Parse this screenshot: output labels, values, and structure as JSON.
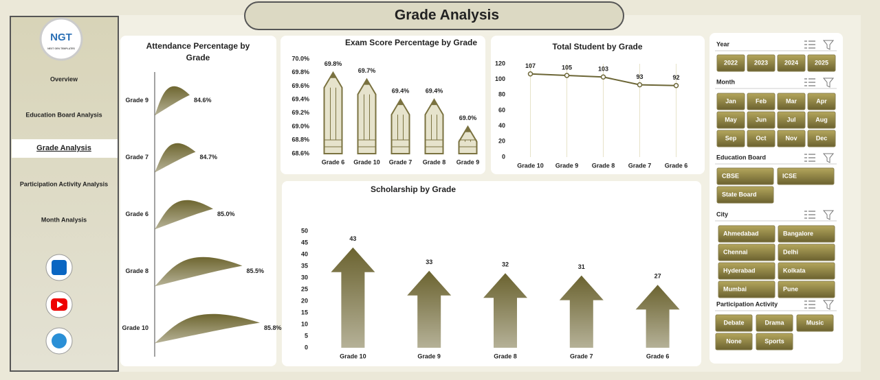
{
  "header": {
    "title": "Grade Analysis"
  },
  "logo": {
    "text": "NGT",
    "subtitle": "NEXT GEN TEMPLATES"
  },
  "nav": {
    "items": [
      "Overview",
      "Education Board Analysis",
      "Grade Analysis",
      "Participation Activity Analysis",
      "Month Analysis"
    ],
    "active": 2
  },
  "charts": [
    {
      "type": "flag",
      "title": "Attendance Percentage by Grade",
      "categories": [
        "Grade 9",
        "Grade 7",
        "Grade 6",
        "Grade 8",
        "Grade 10"
      ],
      "values": [
        84.6,
        84.7,
        85.0,
        85.5,
        85.8
      ],
      "value_labels": [
        "84.6%",
        "84.7%",
        "85.0%",
        "85.5%",
        "85.8%"
      ],
      "xlim": [
        84,
        86
      ],
      "color": "#6e6630"
    },
    {
      "type": "pencil",
      "title": "Exam Score Percentage by Grade",
      "categories": [
        "Grade 6",
        "Grade 10",
        "Grade 7",
        "Grade 8",
        "Grade 9"
      ],
      "values": [
        69.8,
        69.7,
        69.4,
        69.4,
        69.0
      ],
      "value_labels": [
        "69.8%",
        "69.7%",
        "69.4%",
        "69.4%",
        "69.0%"
      ],
      "ylim": [
        68.6,
        70.0
      ],
      "yticks": [
        {
          "value": 68.6,
          "label": "68.6%"
        },
        {
          "value": 68.8,
          "label": "68.8%"
        },
        {
          "value": 69.0,
          "label": "69.0%"
        },
        {
          "value": 69.2,
          "label": "69.2%"
        },
        {
          "value": 69.4,
          "label": "69.4%"
        },
        {
          "value": 69.6,
          "label": "69.6%"
        },
        {
          "value": 69.8,
          "label": "69.8%"
        },
        {
          "value": 70.0,
          "label": "70.0%"
        }
      ],
      "color": "#7a7240"
    },
    {
      "type": "line",
      "title": "Total Student by Grade",
      "categories": [
        "Grade 10",
        "Grade 9",
        "Grade 8",
        "Grade 7",
        "Grade 6"
      ],
      "values": [
        107,
        105,
        103,
        93,
        92
      ],
      "ylim": [
        0,
        120
      ],
      "yticks": [
        0,
        20,
        40,
        60,
        80,
        100,
        120
      ],
      "grid": true,
      "color": "#6b6535"
    },
    {
      "type": "arrow",
      "title": "Scholarship by Grade",
      "categories": [
        "Grade 10",
        "Grade 9",
        "Grade 8",
        "Grade 7",
        "Grade 6"
      ],
      "values": [
        43,
        33,
        32,
        31,
        27
      ],
      "ylim": [
        0,
        50
      ],
      "yticks": [
        0,
        5,
        10,
        15,
        20,
        25,
        30,
        35,
        40,
        45,
        50
      ],
      "color": "#6b6330"
    }
  ],
  "slicers": [
    {
      "title": "Year",
      "items": [
        "2022",
        "2023",
        "2024",
        "2025"
      ]
    },
    {
      "title": "Month",
      "items": [
        "Jan",
        "Feb",
        "Mar",
        "Apr",
        "May",
        "Jun",
        "Jul",
        "Aug",
        "Sep",
        "Oct",
        "Nov",
        "Dec"
      ]
    },
    {
      "title": "Education Board",
      "items": [
        "CBSE",
        "ICSE",
        "State Board"
      ]
    },
    {
      "title": "City",
      "items": [
        "Ahmedabad",
        "Bangalore",
        "Chennai",
        "Delhi",
        "Hyderabad",
        "Kolkata",
        "Mumbai",
        "Pune"
      ]
    },
    {
      "title": "Participation Activity",
      "items": [
        "Debate",
        "Drama",
        "Music",
        "None",
        "Sports"
      ]
    }
  ]
}
